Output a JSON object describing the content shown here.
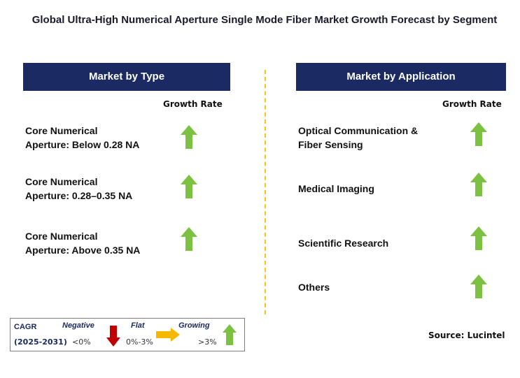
{
  "title": "Global Ultra-High Numerical Aperture Single Mode Fiber Market Growth Forecast by Segment",
  "colors": {
    "header_bg": "#1b2a63",
    "up_arrow": "#7dc142",
    "down_arrow": "#c00000",
    "flat_arrow": "#f5b800",
    "divider": "#f5c518"
  },
  "left": {
    "header": "Market by Type",
    "col_label": "Growth Rate",
    "items": [
      {
        "line1": "Core Numerical",
        "line2": "Aperture: Below 0.28 NA",
        "trend": "growing"
      },
      {
        "line1": "Core Numerical",
        "line2": "Aperture: 0.28–0.35 NA",
        "trend": "growing"
      },
      {
        "line1": "Core Numerical",
        "line2": "Aperture: Above 0.35 NA",
        "trend": "growing"
      }
    ]
  },
  "right": {
    "header": "Market by Application",
    "col_label": "Growth Rate",
    "items": [
      {
        "line1": "Optical Communication &",
        "line2": "Fiber Sensing",
        "trend": "growing"
      },
      {
        "line1": "Medical Imaging",
        "line2": "",
        "trend": "growing"
      },
      {
        "line1": "Scientific Research",
        "line2": "",
        "trend": "growing"
      },
      {
        "line1": "Others",
        "line2": "",
        "trend": "growing"
      }
    ]
  },
  "legend": {
    "cagr": "CAGR",
    "period": "(2025-2031)",
    "negative": "Negative",
    "negative_range": "<0%",
    "flat": "Flat",
    "flat_range": "0%-3%",
    "growing": "Growing",
    "growing_range": ">3%"
  },
  "source": "Source: Lucintel"
}
